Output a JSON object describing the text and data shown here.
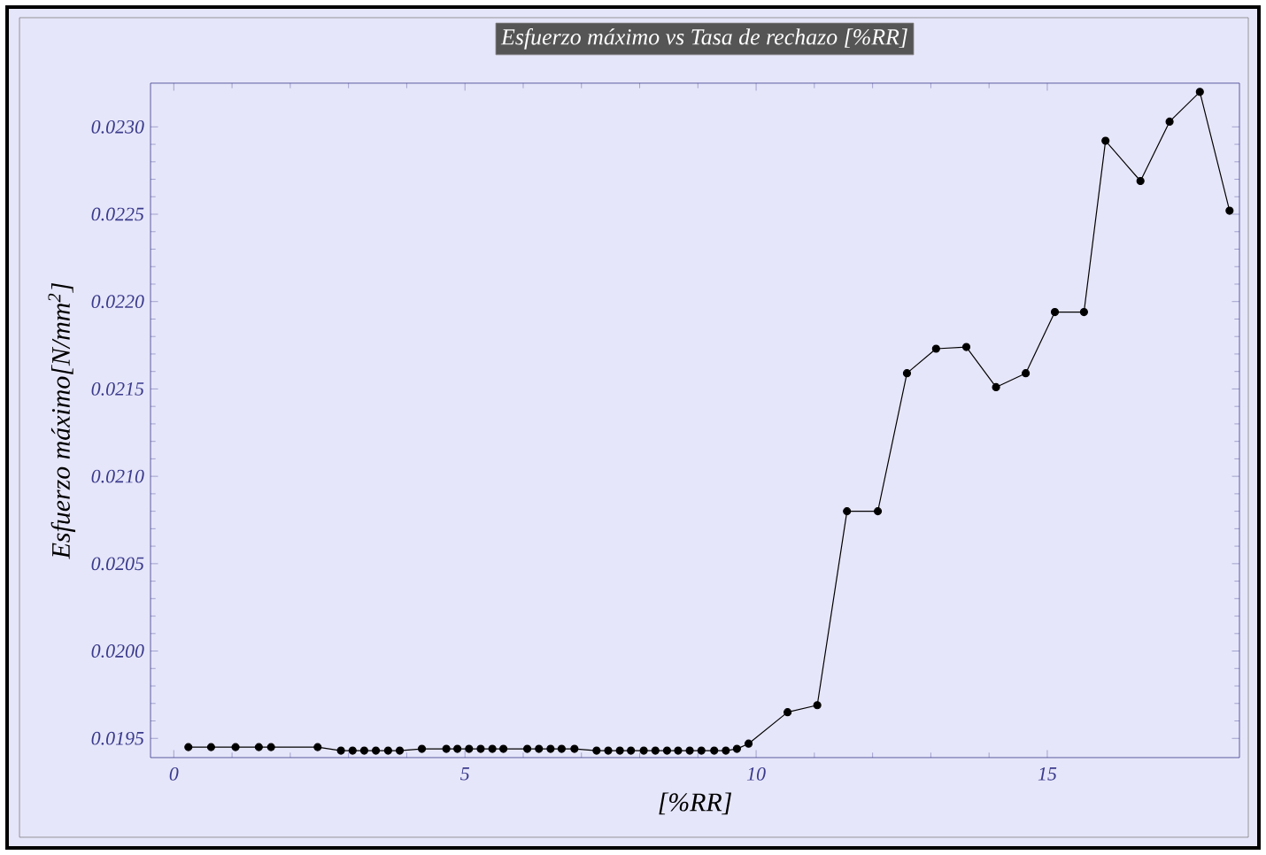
{
  "chart_data": {
    "type": "line",
    "title": "Esfuerzo máximo vs Tasa de rechazo [%RR]",
    "xlabel": "[%RR]",
    "ylabel": "Esfuerzo máximo[N/mm$^{2}$]",
    "series": [
      {
        "color": "#000000",
        "x": [
          0.25,
          0.64,
          1.06,
          1.46,
          1.67,
          2.47,
          2.87,
          3.07,
          3.27,
          3.47,
          3.68,
          3.88,
          4.26,
          4.68,
          4.87,
          5.07,
          5.27,
          5.47,
          5.66,
          6.07,
          6.27,
          6.47,
          6.66,
          6.88,
          7.26,
          7.46,
          7.66,
          7.85,
          8.07,
          8.27,
          8.47,
          8.66,
          8.86,
          9.06,
          9.28,
          9.48,
          9.67,
          9.87,
          10.54,
          11.05,
          11.56,
          12.09,
          12.59,
          13.09,
          13.61,
          14.12,
          14.63,
          15.13,
          15.63,
          16.0,
          16.6,
          17.1,
          17.62,
          18.13
        ],
        "values": [
          0.01945,
          0.01945,
          0.01945,
          0.01945,
          0.01945,
          0.01945,
          0.01943,
          0.01943,
          0.01943,
          0.01943,
          0.01943,
          0.01943,
          0.01944,
          0.01944,
          0.01944,
          0.01944,
          0.01944,
          0.01944,
          0.01944,
          0.01944,
          0.01944,
          0.01944,
          0.01944,
          0.01944,
          0.01943,
          0.01943,
          0.01943,
          0.01943,
          0.01943,
          0.01943,
          0.01943,
          0.01943,
          0.01943,
          0.01943,
          0.01943,
          0.01943,
          0.01944,
          0.01947,
          0.01965,
          0.01969,
          0.0208,
          0.0208,
          0.02159,
          0.02173,
          0.02174,
          0.02151,
          0.02159,
          0.02194,
          0.02194,
          0.02292,
          0.02269,
          0.02303,
          0.0232,
          0.02252
        ]
      }
    ],
    "xlim": [
      -0.4,
      18.3
    ],
    "ylim": [
      0.01939,
      0.02325
    ],
    "xticks": [
      0,
      5,
      10,
      15
    ],
    "yticks": [
      {
        "value": 0.0195,
        "label": "0.0195"
      },
      {
        "value": 0.02,
        "label": "0.0200"
      },
      {
        "value": 0.0205,
        "label": "0.0205"
      },
      {
        "value": 0.021,
        "label": "0.0210"
      },
      {
        "value": 0.0215,
        "label": "0.0215"
      },
      {
        "value": 0.022,
        "label": "0.0220"
      },
      {
        "value": 0.0225,
        "label": "0.0225"
      },
      {
        "value": 0.023,
        "label": "0.0230"
      }
    ],
    "marker": "circle",
    "line_style": "solid"
  }
}
